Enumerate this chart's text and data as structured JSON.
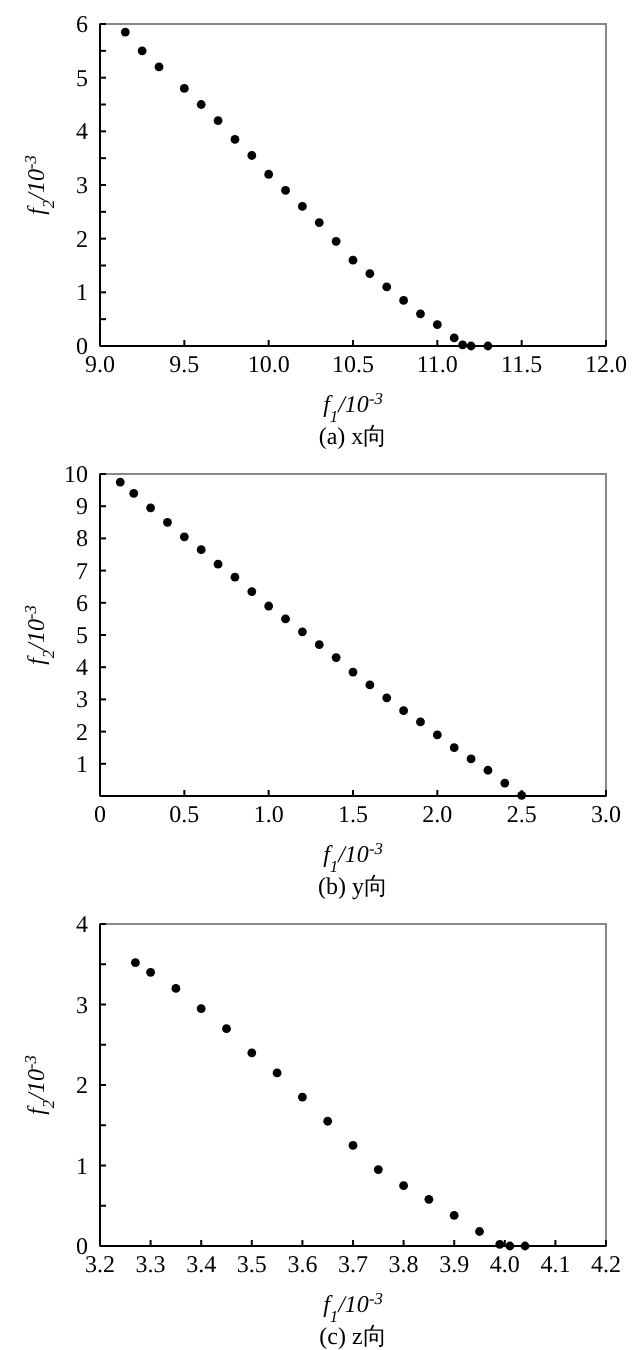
{
  "chart_data": [
    {
      "type": "scatter",
      "xlabel": "f$_{1}$/10$^{-3}$",
      "ylabel": "f$_{2}$/10$^{-3}$",
      "annotations": [
        "(a) x向"
      ],
      "marker": "circle",
      "xlim": [
        9.0,
        12.0
      ],
      "ylim": [
        0,
        6
      ],
      "xticks": [
        {
          "value": 9,
          "label": "9.0"
        },
        9.5,
        {
          "value": 10,
          "label": "10.0"
        },
        10.5,
        {
          "value": 11,
          "label": "11.0"
        },
        11.5,
        {
          "value": 12,
          "label": "12.0"
        }
      ],
      "yticks": [
        0,
        {
          "value": 0.5,
          "label": null
        },
        1,
        {
          "value": 1.5,
          "label": null
        },
        2,
        {
          "value": 2.5,
          "label": null
        },
        3,
        {
          "value": 3.5,
          "label": null
        },
        4,
        {
          "value": 4.5,
          "label": null
        },
        5,
        {
          "value": 5.5,
          "label": null
        },
        6
      ],
      "series": [
        {
          "color": "#000000",
          "x": [
            9.15,
            9.25,
            9.35,
            9.5,
            9.6,
            9.7,
            9.8,
            9.9,
            10.0,
            10.1,
            10.2,
            10.3,
            10.4,
            10.5,
            10.6,
            10.7,
            10.8,
            10.9,
            11.0,
            11.1,
            11.15,
            11.2,
            11.3
          ],
          "values": [
            5.85,
            5.5,
            5.2,
            4.8,
            4.5,
            4.2,
            3.85,
            3.55,
            3.2,
            2.9,
            2.6,
            2.3,
            1.95,
            1.6,
            1.35,
            1.1,
            0.85,
            0.6,
            0.4,
            0.15,
            0.02,
            0.0,
            0.0
          ]
        }
      ]
    },
    {
      "type": "scatter",
      "xlabel": "f$_{1}$/10$^{-3}$",
      "ylabel": "f$_{2}$/10$^{-3}$",
      "annotations": [
        "(b) y向"
      ],
      "marker": "circle",
      "xlim": [
        0,
        3.0
      ],
      "ylim": [
        0,
        10
      ],
      "xticks": [
        0,
        0.5,
        {
          "value": 1,
          "label": "1.0"
        },
        1.5,
        {
          "value": 2,
          "label": "2.0"
        },
        2.5,
        {
          "value": 3,
          "label": "3.0"
        }
      ],
      "yticks": [
        1,
        2,
        3,
        4,
        5,
        6,
        7,
        8,
        9,
        10
      ],
      "series": [
        {
          "color": "#000000",
          "x": [
            0.12,
            0.2,
            0.3,
            0.4,
            0.5,
            0.6,
            0.7,
            0.8,
            0.9,
            1.0,
            1.1,
            1.2,
            1.3,
            1.4,
            1.5,
            1.6,
            1.7,
            1.8,
            1.9,
            2.0,
            2.1,
            2.2,
            2.3,
            2.4,
            2.5
          ],
          "values": [
            9.75,
            9.4,
            8.95,
            8.5,
            8.05,
            7.65,
            7.2,
            6.8,
            6.35,
            5.9,
            5.5,
            5.1,
            4.7,
            4.3,
            3.85,
            3.45,
            3.05,
            2.65,
            2.3,
            1.9,
            1.5,
            1.15,
            0.8,
            0.4,
            0.02
          ]
        }
      ]
    },
    {
      "type": "scatter",
      "xlabel": "f$_{1}$/10$^{-3}$",
      "ylabel": "f$_{2}$/10$^{-3}$",
      "annotations": [
        "(c) z向"
      ],
      "marker": "circle",
      "xlim": [
        3.2,
        4.2
      ],
      "ylim": [
        0,
        4
      ],
      "xticks": [
        3.2,
        3.3,
        3.4,
        3.5,
        3.6,
        3.7,
        3.8,
        3.9,
        {
          "value": 4,
          "label": "4.0"
        },
        4.1,
        4.2
      ],
      "yticks": [
        0,
        {
          "value": 0.5,
          "label": null
        },
        1,
        {
          "value": 1.5,
          "label": null
        },
        2,
        {
          "value": 2.5,
          "label": null
        },
        3,
        {
          "value": 3.5,
          "label": null
        },
        4
      ],
      "series": [
        {
          "color": "#000000",
          "x": [
            3.27,
            3.3,
            3.35,
            3.4,
            3.45,
            3.5,
            3.55,
            3.6,
            3.65,
            3.7,
            3.75,
            3.8,
            3.85,
            3.9,
            3.95,
            3.99,
            4.01,
            4.04
          ],
          "values": [
            3.52,
            3.4,
            3.2,
            2.95,
            2.7,
            2.4,
            2.15,
            1.85,
            1.55,
            1.25,
            0.95,
            0.75,
            0.58,
            0.38,
            0.18,
            0.02,
            0.0,
            0.0
          ]
        }
      ]
    }
  ]
}
